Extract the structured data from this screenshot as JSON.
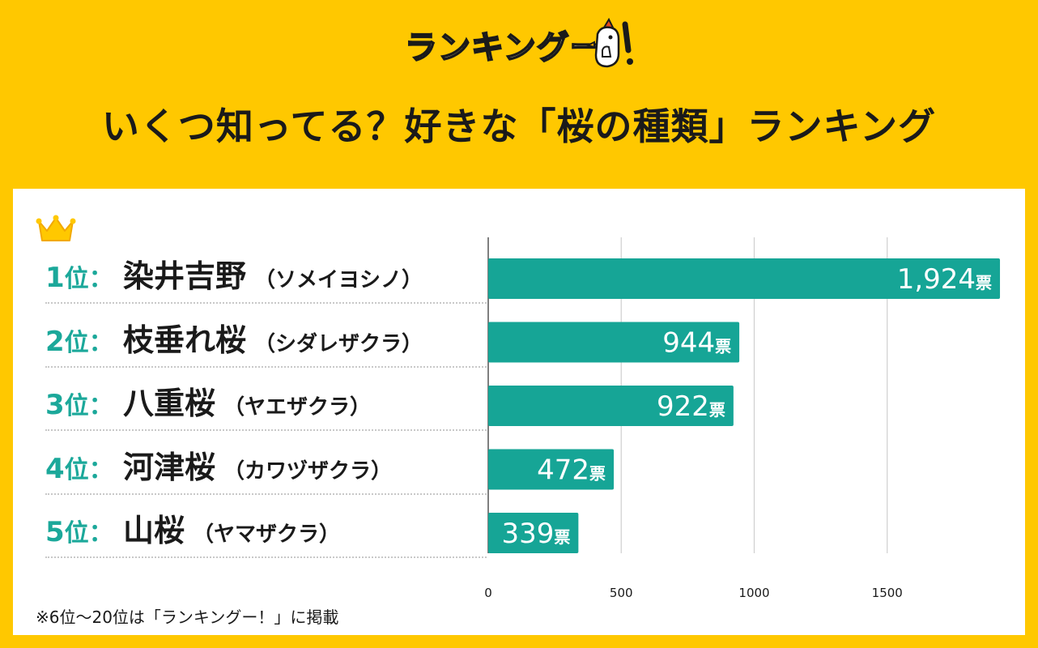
{
  "header": {
    "logo_text": "ランキングー!",
    "title": "いくつ知ってる？好きな「桜の種類」ランキング"
  },
  "chart_data": {
    "type": "bar",
    "orientation": "horizontal",
    "categories": [
      "染井吉野",
      "枝垂れ桜",
      "八重桜",
      "河津桜",
      "山桜"
    ],
    "readings": [
      "（ソメイヨシノ）",
      "（シダレザクラ）",
      "（ヤエザクラ）",
      "（カワヅザクラ）",
      "（ヤマザクラ）"
    ],
    "ranks": [
      "1",
      "2",
      "3",
      "4",
      "5"
    ],
    "rank_suffix": "位：",
    "values": [
      1924,
      944,
      922,
      472,
      339
    ],
    "value_labels": [
      "1,924",
      "944",
      "922",
      "472",
      "339"
    ],
    "unit": "票",
    "xlim": [
      0,
      1900
    ],
    "xticks": [
      0,
      500,
      1000,
      1500
    ],
    "xtick_labels": [
      "0",
      "500",
      "1000",
      "1500"
    ],
    "grid": true,
    "title": "",
    "xlabel": "",
    "ylabel": ""
  },
  "footnote": "※6位～20位は「ランキングー！」に掲載",
  "colors": {
    "background": "#FFC800",
    "bar": "#16A596",
    "rank": "#1BA89A",
    "panel": "#FFFFFF",
    "text": "#1a1a1a"
  },
  "icons": [
    "crown-icon",
    "logo-character-icon"
  ]
}
